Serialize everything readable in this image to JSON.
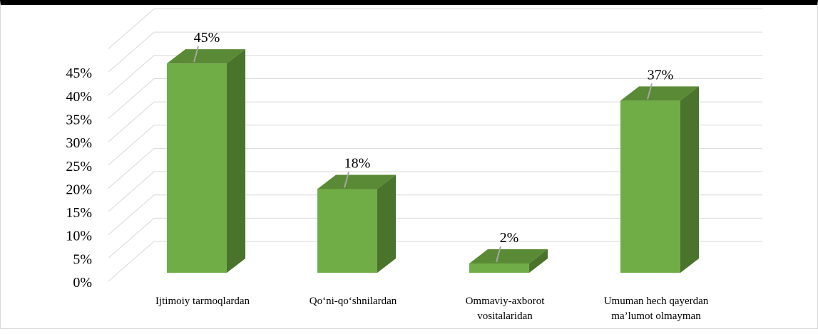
{
  "chart_data": {
    "type": "bar",
    "style": "3d-column",
    "categories": [
      [
        "Ijtimoiy tarmoqlardan"
      ],
      [
        "Qo‘ni-qo‘shnilardan"
      ],
      [
        "Ommaviy-axborot",
        "vositalaridan"
      ],
      [
        "Umuman hech qayerdan",
        "ma’lumot olmayman"
      ]
    ],
    "values": [
      45,
      18,
      2,
      37
    ],
    "data_labels": [
      "45%",
      "18%",
      "2%",
      "37%"
    ],
    "yticks": [
      "0%",
      "5%",
      "10%",
      "15%",
      "20%",
      "25%",
      "30%",
      "35%",
      "40%",
      "45%"
    ],
    "ylim": [
      0,
      45
    ],
    "grid": true,
    "legend": "none",
    "colors": {
      "bar_front": "#70ad47",
      "bar_top": "#5a8a35",
      "bar_side": "#4a732b",
      "grid": "#d9d9d9",
      "leader": "#a6a6a6"
    }
  }
}
